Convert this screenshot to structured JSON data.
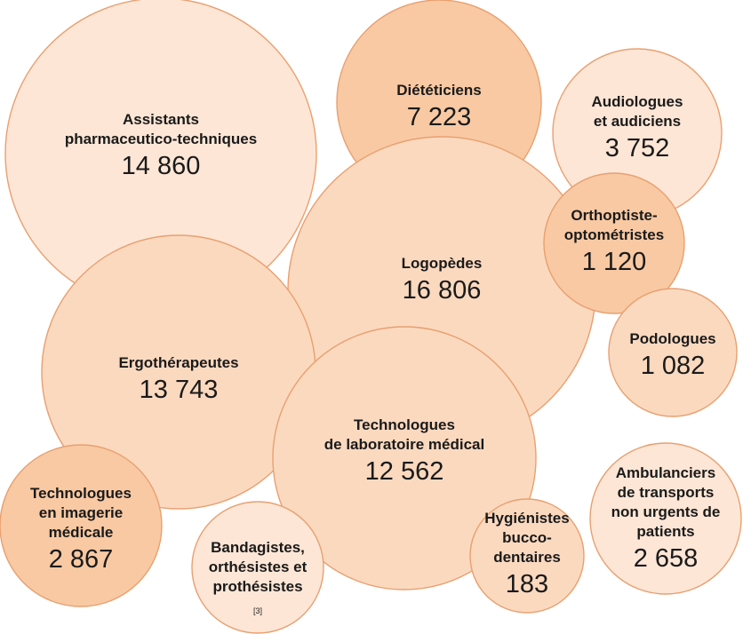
{
  "chart_data": {
    "type": "bubble",
    "items": [
      {
        "label": [
          "Assistants",
          "pharmaceutico-techniques"
        ],
        "value": "14 860",
        "color": "#fde6d6"
      },
      {
        "label": [
          "Diététiciens"
        ],
        "value": "7 223",
        "color": "#f8c9a3"
      },
      {
        "label": [
          "Audiologues",
          "et audiciens"
        ],
        "value": "3 752",
        "color": "#fde6d6"
      },
      {
        "label": [
          "Logopèdes"
        ],
        "value": "16 806",
        "color": "#fbd9bf"
      },
      {
        "label": [
          "Orthoptiste-",
          "optométristes"
        ],
        "value": "1 120",
        "color": "#f8c9a3"
      },
      {
        "label": [
          "Podologues"
        ],
        "value": "1 082",
        "color": "#fbd9bf"
      },
      {
        "label": [
          "Ergothérapeutes"
        ],
        "value": "13 743",
        "color": "#fbd9bf"
      },
      {
        "label": [
          "Technologues",
          "de laboratoire médical"
        ],
        "value": "12 562",
        "color": "#fbd9bf"
      },
      {
        "label": [
          "Technologues",
          "en imagerie",
          "médicale"
        ],
        "value": "2 867",
        "color": "#f8c9a3"
      },
      {
        "label": [
          "Bandagistes,",
          "orthésistes et",
          "prothésistes"
        ],
        "value": "",
        "note": "[3]",
        "color": "#fde6d6"
      },
      {
        "label": [
          "Hygiénistes",
          "bucco-",
          "dentaires"
        ],
        "value": "183",
        "color": "#fbd9bf"
      },
      {
        "label": [
          "Ambulanciers",
          "de transports",
          "non urgents de",
          "patients"
        ],
        "value": "2 658",
        "color": "#fde6d6"
      }
    ]
  }
}
